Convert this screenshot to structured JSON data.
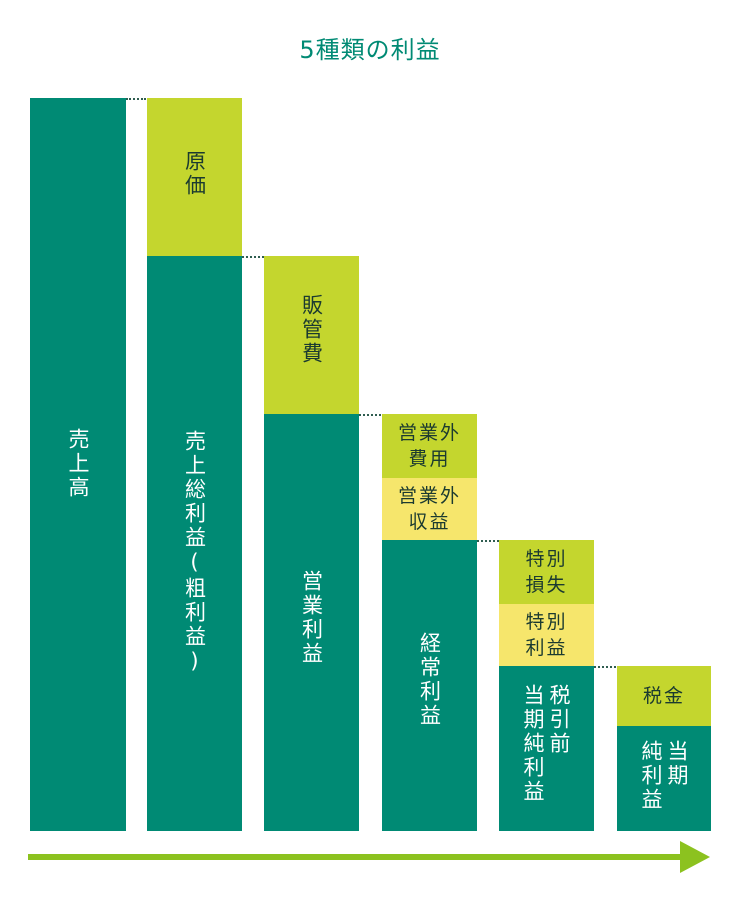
{
  "title": "5種類の利益",
  "columns": {
    "c1": {
      "main": "売上高"
    },
    "c2": {
      "top": "原価",
      "main": "売上総利益(粗利益)"
    },
    "c3": {
      "top": "販管費",
      "main": "営業利益"
    },
    "c4": {
      "top_line1": "営業外",
      "top_line2": "費用",
      "mid_line1": "営業外",
      "mid_line2": "収益",
      "main": "経常利益"
    },
    "c5": {
      "top_line1": "特別",
      "top_line2": "損失",
      "mid_line1": "特別",
      "mid_line2": "利益",
      "main_col1": "税引前",
      "main_col2": "当期純利益"
    },
    "c6": {
      "top": "税金",
      "main_col1": "当期",
      "main_col2": "純利益"
    }
  },
  "colors": {
    "dark_green": "#008a74",
    "light_green": "#c4d62e",
    "yellow": "#f6e66c",
    "arrow": "#8cc21f",
    "title": "#008a74"
  }
}
